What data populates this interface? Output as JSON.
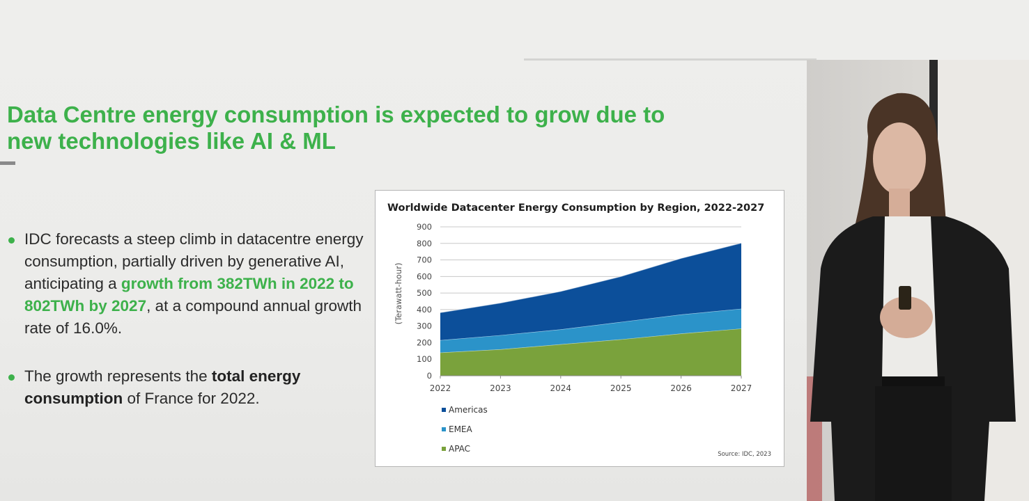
{
  "slide": {
    "title": "Data Centre energy consumption is expected to grow due to new technologies like AI & ML",
    "bullets": [
      {
        "segments": [
          {
            "text": "IDC forecasts a steep climb in datacentre energy consumption, partially driven by generative AI, anticipating a ",
            "style": "normal"
          },
          {
            "text": "growth from 382TWh in 2022 to 802TWh by 2027",
            "style": "highlight"
          },
          {
            "text": ", at a compound annual growth rate of 16.0%.",
            "style": "normal"
          }
        ]
      },
      {
        "segments": [
          {
            "text": "The growth represents the ",
            "style": "normal"
          },
          {
            "text": "total energy consumption",
            "style": "bold"
          },
          {
            "text": " of France for 2022.",
            "style": "normal"
          }
        ]
      }
    ],
    "accent_color": "#3db14b"
  },
  "chart_data": {
    "type": "area",
    "stacked": true,
    "title": "Worldwide Datacenter Energy Consumption by Region, 2022-2027",
    "xlabel": "",
    "ylabel": "(Terawatt-hour)",
    "categories": [
      "2022",
      "2023",
      "2024",
      "2025",
      "2026",
      "2027"
    ],
    "ylim": [
      0,
      900
    ],
    "yticks": [
      0,
      100,
      200,
      300,
      400,
      500,
      600,
      700,
      800,
      900
    ],
    "grid": true,
    "series": [
      {
        "name": "APAC",
        "color": "#7aa23c",
        "values": [
          140,
          160,
          190,
          220,
          255,
          285
        ]
      },
      {
        "name": "EMEA",
        "color": "#2b93c9",
        "values": [
          75,
          85,
          90,
          105,
          115,
          120
        ]
      },
      {
        "name": "Americas",
        "color": "#0c4f9a",
        "values": [
          167,
          195,
          230,
          275,
          340,
          397
        ]
      }
    ],
    "legend_order": [
      "Americas",
      "EMEA",
      "APAC"
    ],
    "legend_position": "bottom-left",
    "source": "Source: IDC, 2023"
  }
}
